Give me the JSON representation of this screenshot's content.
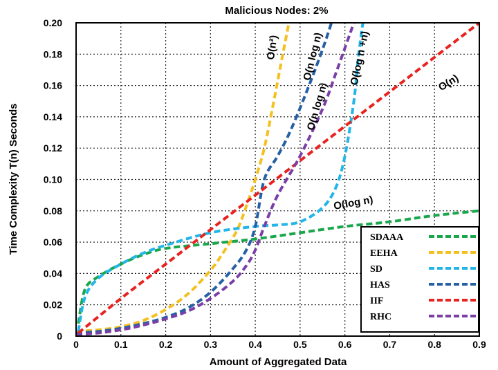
{
  "chart_data": {
    "type": "line",
    "title": "Malicious Nodes: 2%",
    "xlabel": "Amount of Aggregated Data",
    "ylabel": "Time Complexity T(n) Seconds",
    "xlim": [
      0,
      0.9
    ],
    "ylim": [
      0,
      0.2
    ],
    "grid": true,
    "legend_position": "bottom-right",
    "x_ticks": [
      "0",
      "0.1",
      "0.2",
      "0.3",
      "0.4",
      "0.5",
      "0.6",
      "0.7",
      "0.8",
      "0.9"
    ],
    "y_ticks": [
      "0",
      "0.02",
      "0.04",
      "0.06",
      "0.08",
      "0.10",
      "0.12",
      "0.14",
      "0.16",
      "0.18",
      "0.20"
    ],
    "series": [
      {
        "name": "SDAAA",
        "color": "#1aa64b",
        "x": [
          0.005,
          0.02,
          0.05,
          0.1,
          0.15,
          0.2,
          0.3,
          0.4,
          0.5,
          0.6,
          0.7,
          0.8,
          0.9
        ],
        "y": [
          0.008,
          0.03,
          0.038,
          0.046,
          0.052,
          0.056,
          0.059,
          0.062,
          0.066,
          0.07,
          0.073,
          0.077,
          0.08
        ]
      },
      {
        "name": "EEHA",
        "color": "#f4c021",
        "x": [
          0,
          0.05,
          0.1,
          0.15,
          0.2,
          0.25,
          0.3,
          0.33,
          0.36,
          0.38,
          0.4,
          0.42,
          0.44,
          0.46,
          0.475
        ],
        "y": [
          0.003,
          0.004,
          0.006,
          0.01,
          0.017,
          0.027,
          0.042,
          0.054,
          0.068,
          0.083,
          0.1,
          0.12,
          0.148,
          0.178,
          0.2
        ]
      },
      {
        "name": "SD",
        "color": "#22b5e8",
        "x": [
          0.005,
          0.02,
          0.05,
          0.1,
          0.15,
          0.2,
          0.3,
          0.4,
          0.45,
          0.5,
          0.55,
          0.58,
          0.6,
          0.62,
          0.63,
          0.64
        ],
        "y": [
          0.003,
          0.025,
          0.037,
          0.046,
          0.053,
          0.058,
          0.066,
          0.07,
          0.071,
          0.073,
          0.082,
          0.095,
          0.115,
          0.15,
          0.178,
          0.2
        ]
      },
      {
        "name": "HAS",
        "color": "#2660a4",
        "x": [
          0,
          0.05,
          0.1,
          0.15,
          0.2,
          0.25,
          0.3,
          0.35,
          0.38,
          0.4,
          0.42,
          0.45,
          0.48,
          0.52,
          0.55,
          0.57
        ],
        "y": [
          0.002,
          0.003,
          0.005,
          0.008,
          0.012,
          0.018,
          0.028,
          0.043,
          0.055,
          0.07,
          0.1,
          0.115,
          0.132,
          0.16,
          0.183,
          0.2
        ]
      },
      {
        "name": "IIF",
        "color": "#e8221f",
        "x": [
          0.005,
          0.1,
          0.2,
          0.3,
          0.4,
          0.5,
          0.6,
          0.7,
          0.8,
          0.9
        ],
        "y": [
          0.002,
          0.024,
          0.046,
          0.068,
          0.09,
          0.112,
          0.134,
          0.156,
          0.178,
          0.2
        ]
      },
      {
        "name": "RHC",
        "color": "#7a3fa6",
        "x": [
          0,
          0.05,
          0.1,
          0.15,
          0.2,
          0.25,
          0.3,
          0.35,
          0.38,
          0.4,
          0.42,
          0.45,
          0.5,
          0.55,
          0.58,
          0.62
        ],
        "y": [
          0.001,
          0.002,
          0.004,
          0.007,
          0.011,
          0.016,
          0.024,
          0.035,
          0.045,
          0.055,
          0.07,
          0.09,
          0.115,
          0.145,
          0.168,
          0.2
        ]
      }
    ],
    "annotations": [
      {
        "text": "O(n²)",
        "x": 0.445,
        "y": 0.184
      },
      {
        "text": "O(n log n)",
        "x": 0.535,
        "y": 0.178
      },
      {
        "text": "O(log n +n)",
        "x": 0.64,
        "y": 0.177
      },
      {
        "text": "O(n)",
        "x": 0.835,
        "y": 0.16
      },
      {
        "text": "O(n log n)",
        "x": 0.545,
        "y": 0.146
      },
      {
        "text": "O(log n)",
        "x": 0.62,
        "y": 0.083
      }
    ]
  }
}
